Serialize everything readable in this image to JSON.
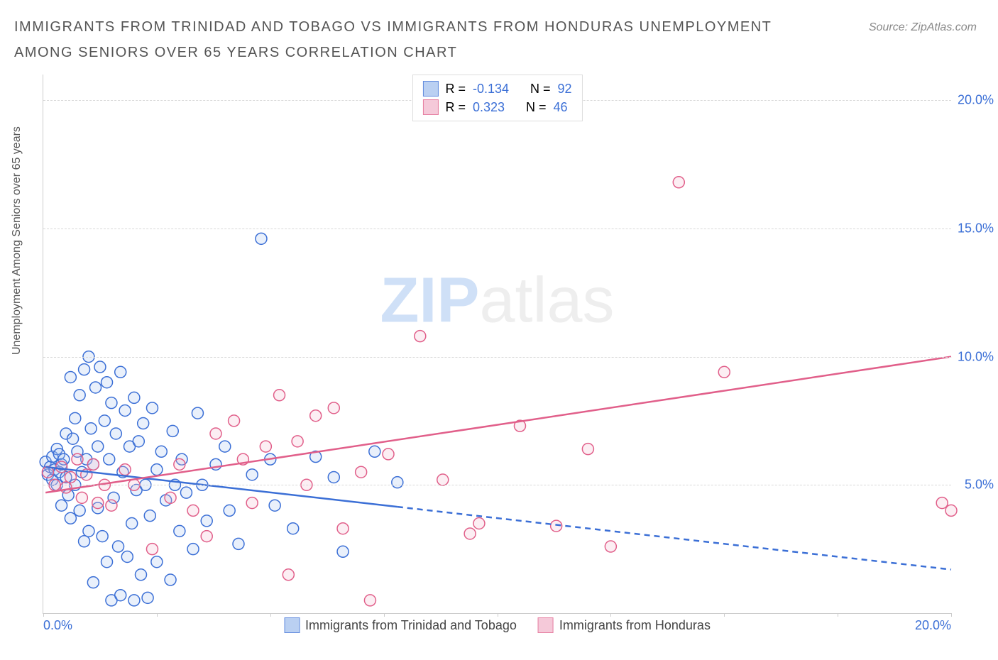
{
  "header": {
    "title": "IMMIGRANTS FROM TRINIDAD AND TOBAGO VS IMMIGRANTS FROM HONDURAS UNEMPLOYMENT AMONG SENIORS OVER 65 YEARS CORRELATION CHART",
    "source_prefix": "Source: ",
    "source_name": "ZipAtlas.com"
  },
  "chart": {
    "type": "scatter",
    "y_label": "Unemployment Among Seniors over 65 years",
    "xlim": [
      0,
      20
    ],
    "ylim": [
      0,
      21
    ],
    "x_min_label": "0.0%",
    "x_max_label": "20.0%",
    "y_ticks": [
      {
        "v": 5,
        "label": "5.0%"
      },
      {
        "v": 10,
        "label": "10.0%"
      },
      {
        "v": 15,
        "label": "15.0%"
      },
      {
        "v": 20,
        "label": "20.0%"
      }
    ],
    "x_tick_positions": [
      0,
      2.5,
      5,
      7.5,
      10,
      12.5,
      15,
      17.5,
      20
    ],
    "background_color": "#ffffff",
    "grid_color": "#d8d8d8",
    "axis_tick_color": "#3b6fd6",
    "marker_radius": 8,
    "marker_stroke_width": 1.5,
    "marker_fill_opacity": 0.25,
    "line_width": 2.5,
    "series": [
      {
        "id": "trinidad",
        "name": "Immigrants from Trinidad and Tobago",
        "color_stroke": "#3b6fd6",
        "color_fill": "#a9c5ef",
        "R": "-0.134",
        "N": "92",
        "regression": {
          "x1": 0.05,
          "y1": 5.7,
          "x2": 20,
          "y2": 1.7,
          "solid_until_x": 7.8
        },
        "points": [
          [
            0.05,
            5.9
          ],
          [
            0.1,
            5.4
          ],
          [
            0.15,
            5.7
          ],
          [
            0.2,
            6.1
          ],
          [
            0.2,
            5.2
          ],
          [
            0.25,
            5.6
          ],
          [
            0.3,
            6.4
          ],
          [
            0.3,
            5.0
          ],
          [
            0.35,
            5.5
          ],
          [
            0.35,
            6.2
          ],
          [
            0.4,
            4.2
          ],
          [
            0.4,
            5.8
          ],
          [
            0.45,
            6.0
          ],
          [
            0.5,
            5.3
          ],
          [
            0.5,
            7.0
          ],
          [
            0.55,
            4.6
          ],
          [
            0.6,
            3.7
          ],
          [
            0.6,
            9.2
          ],
          [
            0.65,
            6.8
          ],
          [
            0.7,
            5.0
          ],
          [
            0.7,
            7.6
          ],
          [
            0.75,
            6.3
          ],
          [
            0.8,
            4.0
          ],
          [
            0.8,
            8.5
          ],
          [
            0.85,
            5.5
          ],
          [
            0.9,
            9.5
          ],
          [
            0.9,
            2.8
          ],
          [
            0.95,
            6.0
          ],
          [
            1.0,
            10.0
          ],
          [
            1.0,
            3.2
          ],
          [
            1.05,
            7.2
          ],
          [
            1.1,
            5.8
          ],
          [
            1.1,
            1.2
          ],
          [
            1.15,
            8.8
          ],
          [
            1.2,
            6.5
          ],
          [
            1.2,
            4.1
          ],
          [
            1.25,
            9.6
          ],
          [
            1.3,
            3.0
          ],
          [
            1.35,
            7.5
          ],
          [
            1.4,
            2.0
          ],
          [
            1.4,
            9.0
          ],
          [
            1.45,
            6.0
          ],
          [
            1.5,
            8.2
          ],
          [
            1.5,
            0.5
          ],
          [
            1.55,
            4.5
          ],
          [
            1.6,
            7.0
          ],
          [
            1.65,
            2.6
          ],
          [
            1.7,
            9.4
          ],
          [
            1.7,
            0.7
          ],
          [
            1.75,
            5.5
          ],
          [
            1.8,
            7.9
          ],
          [
            1.85,
            2.2
          ],
          [
            1.9,
            6.5
          ],
          [
            1.95,
            3.5
          ],
          [
            2.0,
            8.4
          ],
          [
            2.0,
            0.5
          ],
          [
            2.05,
            4.8
          ],
          [
            2.1,
            6.7
          ],
          [
            2.15,
            1.5
          ],
          [
            2.2,
            7.4
          ],
          [
            2.25,
            5.0
          ],
          [
            2.3,
            0.6
          ],
          [
            2.35,
            3.8
          ],
          [
            2.4,
            8.0
          ],
          [
            2.5,
            5.6
          ],
          [
            2.5,
            2.0
          ],
          [
            2.6,
            6.3
          ],
          [
            2.7,
            4.4
          ],
          [
            2.8,
            1.3
          ],
          [
            2.85,
            7.1
          ],
          [
            2.9,
            5.0
          ],
          [
            3.0,
            3.2
          ],
          [
            3.05,
            6.0
          ],
          [
            3.15,
            4.7
          ],
          [
            3.3,
            2.5
          ],
          [
            3.4,
            7.8
          ],
          [
            3.5,
            5.0
          ],
          [
            3.6,
            3.6
          ],
          [
            3.8,
            5.8
          ],
          [
            4.0,
            6.5
          ],
          [
            4.1,
            4.0
          ],
          [
            4.3,
            2.7
          ],
          [
            4.6,
            5.4
          ],
          [
            4.8,
            14.6
          ],
          [
            5.0,
            6.0
          ],
          [
            5.1,
            4.2
          ],
          [
            5.5,
            3.3
          ],
          [
            6.0,
            6.1
          ],
          [
            6.4,
            5.3
          ],
          [
            6.6,
            2.4
          ],
          [
            7.3,
            6.3
          ],
          [
            7.8,
            5.1
          ]
        ]
      },
      {
        "id": "honduras",
        "name": "Immigrants from Honduras",
        "color_stroke": "#e15f8a",
        "color_fill": "#f3bcd0",
        "R": "0.323",
        "N": "46",
        "regression": {
          "x1": 0.05,
          "y1": 4.7,
          "x2": 20,
          "y2": 10.0,
          "solid_until_x": 20
        },
        "points": [
          [
            0.1,
            5.5
          ],
          [
            0.25,
            5.0
          ],
          [
            0.4,
            5.7
          ],
          [
            0.5,
            4.9
          ],
          [
            0.6,
            5.3
          ],
          [
            0.75,
            6.0
          ],
          [
            0.85,
            4.5
          ],
          [
            0.95,
            5.4
          ],
          [
            1.1,
            5.8
          ],
          [
            1.2,
            4.3
          ],
          [
            1.35,
            5.0
          ],
          [
            1.5,
            4.2
          ],
          [
            1.8,
            5.6
          ],
          [
            2.0,
            5.0
          ],
          [
            2.4,
            2.5
          ],
          [
            2.8,
            4.5
          ],
          [
            3.0,
            5.8
          ],
          [
            3.3,
            4.0
          ],
          [
            3.6,
            3.0
          ],
          [
            3.8,
            7.0
          ],
          [
            4.2,
            7.5
          ],
          [
            4.4,
            6.0
          ],
          [
            4.6,
            4.3
          ],
          [
            4.9,
            6.5
          ],
          [
            5.2,
            8.5
          ],
          [
            5.4,
            1.5
          ],
          [
            5.6,
            6.7
          ],
          [
            5.8,
            5.0
          ],
          [
            6.0,
            7.7
          ],
          [
            6.4,
            8.0
          ],
          [
            6.6,
            3.3
          ],
          [
            7.0,
            5.5
          ],
          [
            7.2,
            0.5
          ],
          [
            7.6,
            6.2
          ],
          [
            8.3,
            10.8
          ],
          [
            8.8,
            5.2
          ],
          [
            9.4,
            3.1
          ],
          [
            9.6,
            3.5
          ],
          [
            10.5,
            7.3
          ],
          [
            11.3,
            3.4
          ],
          [
            12.0,
            6.4
          ],
          [
            12.5,
            2.6
          ],
          [
            14.0,
            16.8
          ],
          [
            15.0,
            9.4
          ],
          [
            20.0,
            4.0
          ],
          [
            19.8,
            4.3
          ]
        ]
      }
    ],
    "legend_top_labels": {
      "R": "R =",
      "N": "N ="
    },
    "watermark": {
      "part1": "ZIP",
      "part2": "atlas"
    }
  }
}
